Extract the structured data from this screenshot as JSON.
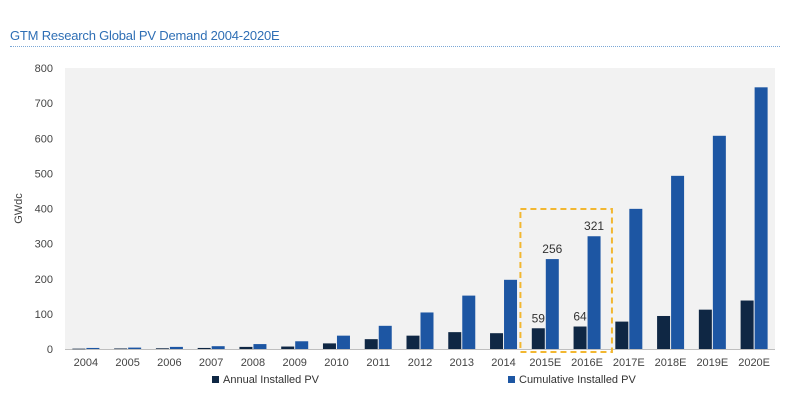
{
  "title": "GTM Research Global PV Demand 2004-2020E",
  "colors": {
    "annual": "#0f2744",
    "cumulative": "#1d56a3",
    "plot_bg": "#f2f2f2",
    "highlight": "#f2b731"
  },
  "chart_data": {
    "type": "bar",
    "title": "GTM Research Global PV Demand 2004-2020E",
    "ylabel": "GWdc",
    "xlabel": "",
    "ylim": [
      0,
      800
    ],
    "yticks": [
      0,
      100,
      200,
      300,
      400,
      500,
      600,
      700,
      800
    ],
    "grid": false,
    "legend": "bottom",
    "categories": [
      "2004",
      "2005",
      "2006",
      "2007",
      "2008",
      "2009",
      "2010",
      "2011",
      "2012",
      "2013",
      "2014",
      "2015E",
      "2016E",
      "2017E",
      "2018E",
      "2019E",
      "2020E"
    ],
    "series": [
      {
        "name": "Annual Installed PV",
        "color": "#0f2744",
        "values": [
          1,
          1.5,
          2,
          3,
          6,
          7,
          16,
          28,
          38,
          48,
          45,
          59,
          64,
          78,
          94,
          112,
          138
        ]
      },
      {
        "name": "Cumulative Installed PV",
        "color": "#1d56a3",
        "values": [
          3,
          4,
          6,
          8,
          14,
          22,
          38,
          66,
          104,
          152,
          197,
          256,
          321,
          399,
          493,
          607,
          745
        ]
      }
    ],
    "data_labels": [
      {
        "category": "2015E",
        "series": 0,
        "text": "59"
      },
      {
        "category": "2015E",
        "series": 1,
        "text": "256"
      },
      {
        "category": "2016E",
        "series": 0,
        "text": "64"
      },
      {
        "category": "2016E",
        "series": 1,
        "text": "321"
      }
    ],
    "highlight_categories": [
      "2015E",
      "2016E"
    ]
  }
}
